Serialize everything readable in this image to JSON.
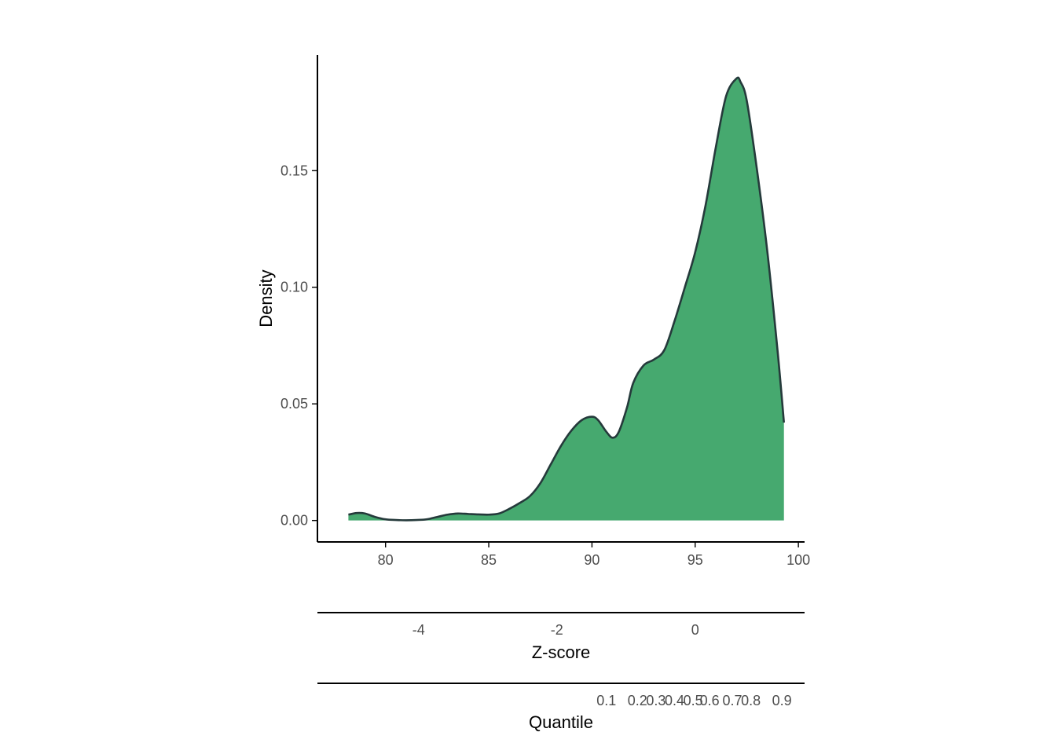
{
  "chart_data": {
    "type": "area",
    "ylabel": "Density",
    "xlim": [
      76.7,
      100.3
    ],
    "ylim": [
      -0.0092,
      0.1996
    ],
    "x_ticks": [
      80,
      85,
      90,
      95,
      100
    ],
    "y_ticks": [
      0.0,
      0.05,
      0.1,
      0.15
    ],
    "y_tick_labels": [
      "0.00",
      "0.05",
      "0.10",
      "0.15"
    ],
    "fill_color": "#46a96f",
    "line_color": "#253a3b",
    "density": {
      "x": [
        78.2,
        78.6,
        79.0,
        79.5,
        80.0,
        80.5,
        81.0,
        81.5,
        82.0,
        82.5,
        83.0,
        83.5,
        84.0,
        84.5,
        85.0,
        85.5,
        86.0,
        86.5,
        87.0,
        87.5,
        88.0,
        88.5,
        89.0,
        89.5,
        90.0,
        90.3,
        90.7,
        91.0,
        91.3,
        91.7,
        92.0,
        92.5,
        93.0,
        93.5,
        94.0,
        94.5,
        95.0,
        95.5,
        96.0,
        96.5,
        97.0,
        97.2,
        97.5,
        98.0,
        98.5,
        99.0,
        99.3
      ],
      "y": [
        0.0025,
        0.0032,
        0.003,
        0.0015,
        0.0005,
        0.0002,
        0.0001,
        0.0002,
        0.0005,
        0.0015,
        0.0025,
        0.003,
        0.0028,
        0.0026,
        0.0025,
        0.003,
        0.005,
        0.0075,
        0.0105,
        0.016,
        0.024,
        0.032,
        0.0385,
        0.043,
        0.0445,
        0.043,
        0.038,
        0.0355,
        0.038,
        0.0485,
        0.059,
        0.0665,
        0.069,
        0.073,
        0.0855,
        0.1,
        0.115,
        0.135,
        0.16,
        0.182,
        0.1895,
        0.188,
        0.18,
        0.15,
        0.115,
        0.072,
        0.042
      ]
    },
    "secondary_axes": [
      {
        "title": "Z-score",
        "ticks": [
          {
            "label": "-4",
            "x": 81.6
          },
          {
            "label": "-2",
            "x": 88.3
          },
          {
            "label": "0",
            "x": 95.0
          }
        ]
      },
      {
        "title": "Quantile",
        "ticks": [
          {
            "label": "0.1",
            "x": 90.7
          },
          {
            "label": "0.2",
            "x": 92.2
          },
          {
            "label": "0.3",
            "x": 93.1
          },
          {
            "label": "0.4",
            "x": 94.0
          },
          {
            "label": "0.5",
            "x": 94.9
          },
          {
            "label": "0.6",
            "x": 95.7
          },
          {
            "label": "0.7",
            "x": 96.8
          },
          {
            "label": "0.8",
            "x": 97.7
          },
          {
            "label": "0.9",
            "x": 99.2
          }
        ]
      }
    ]
  }
}
